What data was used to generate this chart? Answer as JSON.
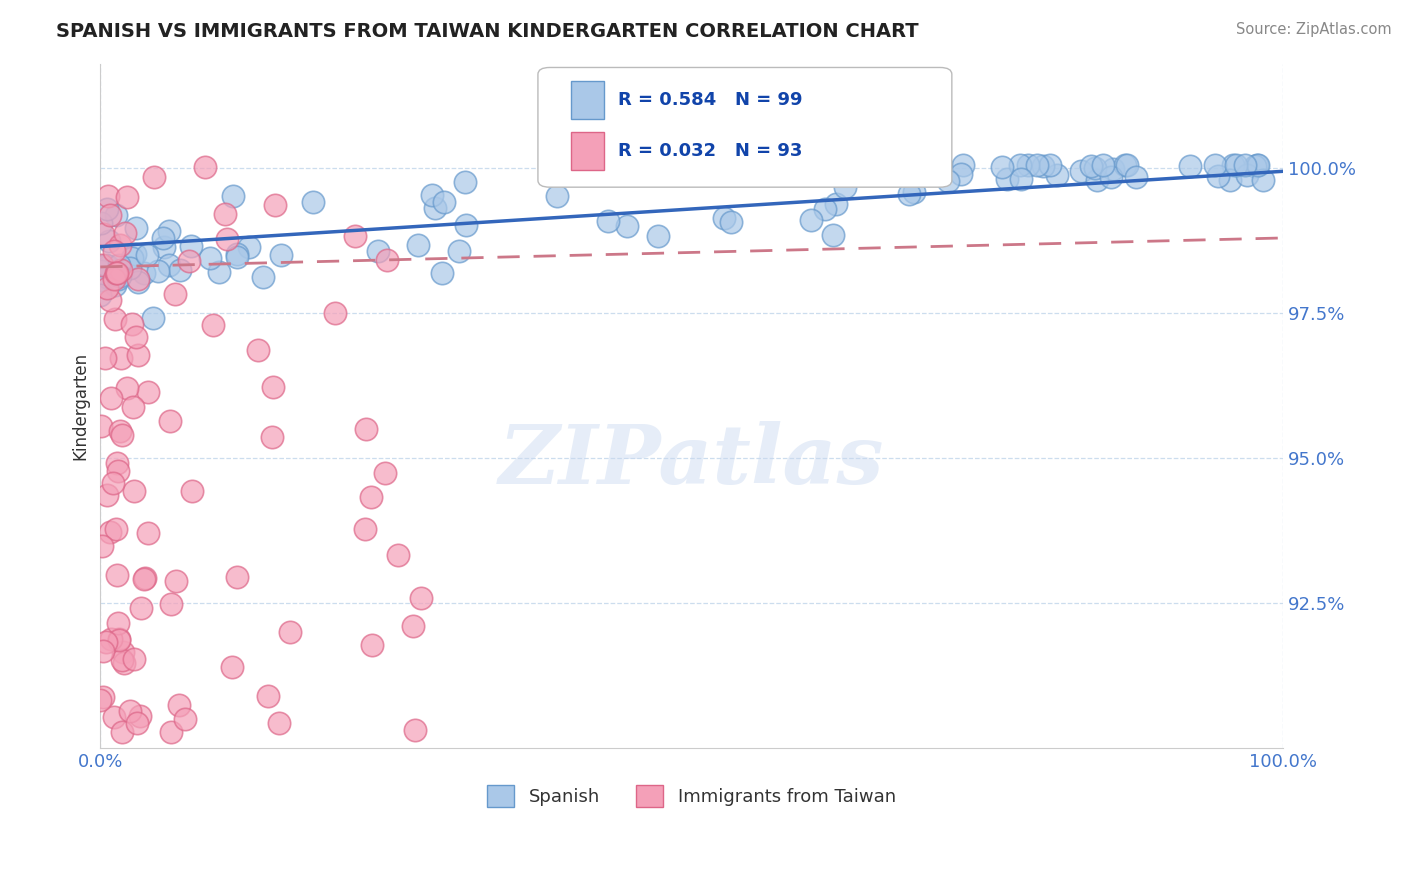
{
  "title": "SPANISH VS IMMIGRANTS FROM TAIWAN KINDERGARTEN CORRELATION CHART",
  "source_text": "Source: ZipAtlas.com",
  "ylabel": "Kindergarten",
  "watermark": "ZIPatlas",
  "x_min": 0.0,
  "x_max": 100.0,
  "y_min": 90.0,
  "y_max": 101.8,
  "y_ticks": [
    92.5,
    95.0,
    97.5,
    100.0
  ],
  "y_tick_labels": [
    "92.5%",
    "95.0%",
    "97.5%",
    "100.0%"
  ],
  "x_tick_labels": [
    "0.0%",
    "100.0%"
  ],
  "legend_r_spanish": "R = 0.584",
  "legend_n_spanish": "N = 99",
  "legend_r_taiwan": "R = 0.032",
  "legend_n_taiwan": "N = 93",
  "spanish_color": "#aac8e8",
  "spanish_edge_color": "#6699cc",
  "taiwan_color": "#f4a0b8",
  "taiwan_edge_color": "#dd6688",
  "trendline_spanish_color": "#3366bb",
  "trendline_taiwan_color": "#cc7788",
  "grid_color": "#ccddee",
  "tick_label_color": "#4477cc",
  "spanish_seed": 12,
  "taiwan_seed": 7,
  "n_spanish": 99,
  "n_taiwan": 93
}
